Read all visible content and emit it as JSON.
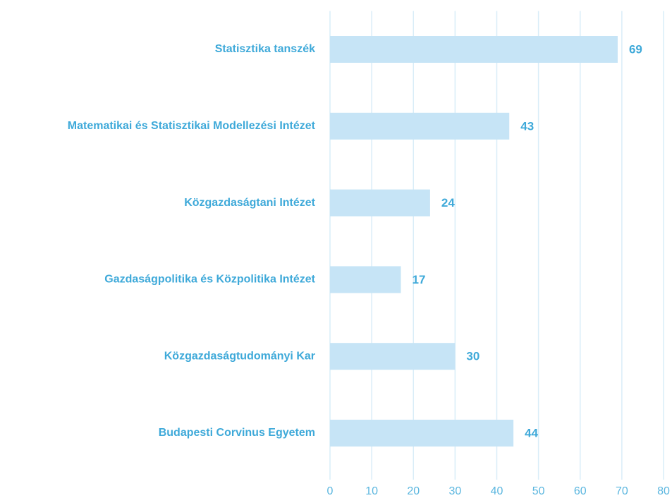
{
  "chart_data": {
    "type": "barh",
    "categories": [
      "Statisztika tanszék",
      "Matematikai és Statisztikai Modellezési Intézet",
      "Közgazdaságtani Intézet",
      "Gazdaságpolitika és Közpolitika Intézet",
      "Közgazdaságtudományi Kar",
      "Budapesti Corvinus Egyetem"
    ],
    "values": [
      69,
      43,
      24,
      17,
      30,
      44
    ],
    "color": "#c6e4f6",
    "xlim": [
      0,
      80
    ],
    "xticks": [
      0,
      10,
      20,
      30,
      40,
      50,
      60,
      70,
      80
    ],
    "grid": true
  }
}
